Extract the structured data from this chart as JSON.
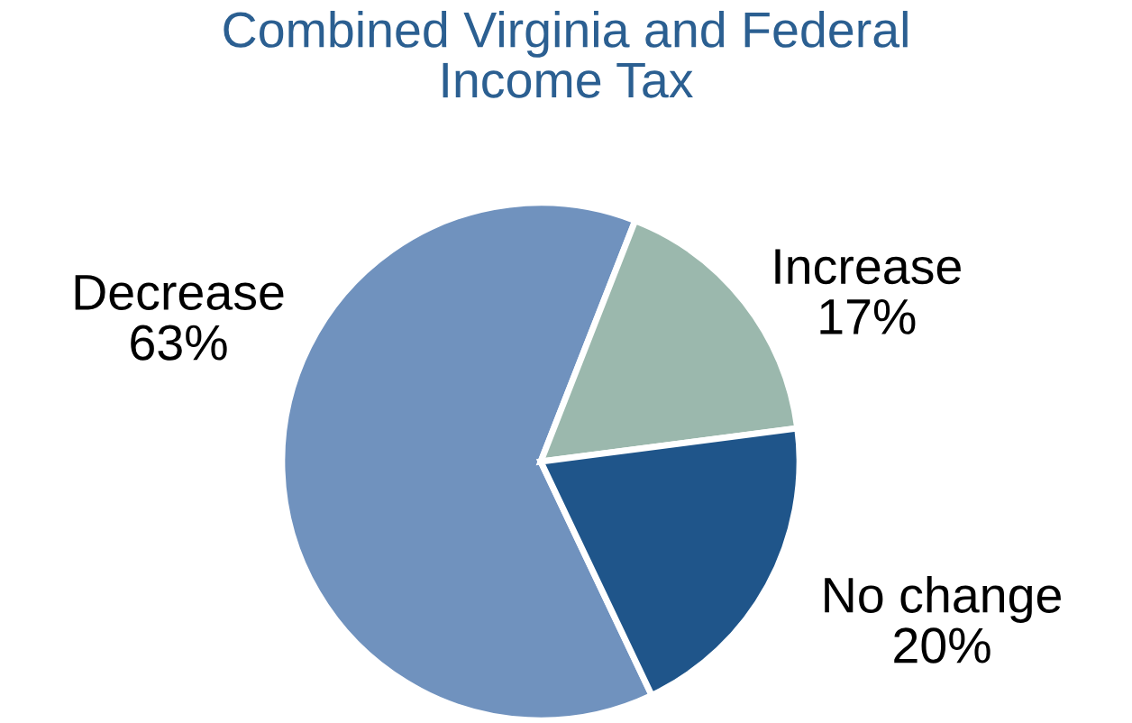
{
  "chart_data": {
    "type": "pie",
    "title": "Combined Virginia and Federal\nIncome Tax",
    "categories": [
      "Decrease",
      "Increase",
      "No change"
    ],
    "values": [
      63,
      17,
      20
    ],
    "colors": [
      "#7092be",
      "#9bb8ad",
      "#1f558a"
    ],
    "value_labels": [
      "63%",
      "17%",
      "20%"
    ]
  }
}
